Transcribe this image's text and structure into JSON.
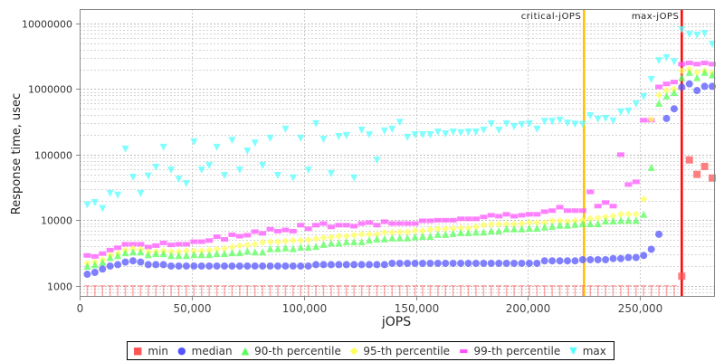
{
  "chart_data": {
    "type": "scatter",
    "xlabel": "jOPS",
    "ylabel": "Response time, usec",
    "xlim": [
      0,
      283000
    ],
    "ylim": [
      700,
      16600000
    ],
    "yscale": "log",
    "grid": true,
    "legend_position": "bottom",
    "x_ticks": [
      "0",
      "50,000",
      "100,000",
      "150,000",
      "200,000",
      "250,000"
    ],
    "x_tick_values": [
      0,
      50000,
      100000,
      150000,
      200000,
      250000
    ],
    "y_ticks": [
      "1000",
      "10000",
      "100000",
      "1000000",
      "10000000"
    ],
    "y_tick_values": [
      1000,
      10000,
      100000,
      1000000,
      10000000
    ],
    "markers": [
      {
        "label": "critical-jOPS",
        "x": 225000,
        "color": "#FFC000"
      },
      {
        "label": "max-jOPS",
        "x": 268600,
        "color": "#FF0000"
      }
    ],
    "x": [
      3400,
      6800,
      10200,
      13600,
      17000,
      20400,
      23800,
      27200,
      30600,
      34000,
      37400,
      40800,
      44200,
      47600,
      51000,
      54400,
      57800,
      61200,
      64600,
      68000,
      71400,
      74800,
      78200,
      81600,
      85000,
      88400,
      91800,
      95200,
      98600,
      102000,
      105400,
      108800,
      112200,
      115600,
      119000,
      122400,
      125800,
      129200,
      132600,
      136000,
      139400,
      142800,
      146200,
      149600,
      153000,
      156400,
      159800,
      163200,
      166600,
      170000,
      173400,
      176800,
      180200,
      183600,
      187000,
      190400,
      193800,
      197200,
      200600,
      204000,
      207400,
      210800,
      214200,
      217600,
      221000,
      224400,
      227800,
      231200,
      234600,
      238000,
      241400,
      244800,
      248200,
      251600,
      255000,
      258400,
      261800,
      265200,
      268600,
      272000,
      275400,
      278800,
      282200
    ],
    "series": [
      {
        "name": "min",
        "color": "#FF5555",
        "marker": "square",
        "values": [
          1000,
          1000,
          1000,
          1000,
          1000,
          1000,
          1000,
          1000,
          1000,
          1000,
          1000,
          1000,
          1000,
          1000,
          1000,
          1000,
          1000,
          1000,
          1000,
          1000,
          1000,
          1000,
          1000,
          1000,
          1000,
          1000,
          1000,
          1000,
          1000,
          1000,
          1000,
          1000,
          1000,
          1000,
          1000,
          1000,
          1000,
          1000,
          1000,
          1000,
          1000,
          1000,
          1000,
          1000,
          1000,
          1000,
          1000,
          1000,
          1000,
          1000,
          1000,
          1000,
          1000,
          1000,
          1000,
          1000,
          1000,
          1000,
          1000,
          1000,
          1000,
          1000,
          1000,
          1000,
          1000,
          1000,
          1000,
          1000,
          1000,
          1000,
          1000,
          1000,
          1000,
          1000,
          1000,
          1000,
          1000,
          1000,
          1400,
          83000,
          50000,
          66000,
          44000
        ]
      },
      {
        "name": "median",
        "color": "#5555FF",
        "marker": "circle",
        "values": [
          1500,
          1600,
          1800,
          2000,
          2100,
          2300,
          2400,
          2300,
          2100,
          2100,
          2100,
          2000,
          2000,
          2000,
          2000,
          2000,
          2000,
          2000,
          2000,
          2000,
          2000,
          2000,
          2000,
          2000,
          2000,
          2000,
          2000,
          2000,
          2000,
          2000,
          2100,
          2100,
          2100,
          2100,
          2100,
          2100,
          2100,
          2100,
          2100,
          2100,
          2200,
          2200,
          2200,
          2200,
          2200,
          2200,
          2200,
          2200,
          2200,
          2200,
          2200,
          2200,
          2200,
          2200,
          2200,
          2200,
          2200,
          2200,
          2200,
          2200,
          2400,
          2400,
          2400,
          2400,
          2400,
          2500,
          2500,
          2500,
          2500,
          2600,
          2600,
          2700,
          2700,
          2900,
          3600,
          6100,
          356000,
          500000,
          1070000,
          1200000,
          950000,
          1100000,
          1100000
        ]
      },
      {
        "name": "90-th percentile",
        "color": "#55FF55",
        "marker": "triangle-up",
        "values": [
          2000,
          2100,
          2300,
          2700,
          2900,
          3200,
          3300,
          3300,
          3000,
          3100,
          3100,
          2900,
          2900,
          2900,
          3000,
          3000,
          3000,
          3100,
          3100,
          3200,
          3200,
          3400,
          3300,
          3300,
          3700,
          3700,
          3800,
          3700,
          3900,
          3900,
          4000,
          4300,
          4500,
          4500,
          4700,
          4700,
          4700,
          5000,
          5200,
          5200,
          5400,
          5400,
          5400,
          5600,
          5700,
          5700,
          6100,
          6100,
          6300,
          6500,
          6500,
          6600,
          6600,
          6900,
          6900,
          7400,
          7400,
          7400,
          7600,
          7600,
          7900,
          8100,
          8400,
          8400,
          8700,
          8900,
          8900,
          8900,
          9800,
          9800,
          10000,
          10000,
          10000,
          12300,
          64000,
          610000,
          790000,
          890000,
          1500000,
          1800000,
          1500000,
          1800000,
          1650000
        ]
      },
      {
        "name": "95-th percentile",
        "color": "#FFFF55",
        "marker": "diamond",
        "values": [
          2200,
          2300,
          2500,
          2900,
          3100,
          3500,
          3700,
          3600,
          3300,
          3300,
          3400,
          3300,
          3300,
          3400,
          3400,
          3400,
          3500,
          3600,
          3700,
          3900,
          4100,
          4200,
          4300,
          4600,
          4700,
          4700,
          4800,
          4900,
          4900,
          5000,
          5200,
          5400,
          5500,
          5700,
          5700,
          5900,
          6100,
          6100,
          6100,
          6500,
          6500,
          6600,
          6600,
          6900,
          6900,
          7200,
          7400,
          7400,
          7500,
          7600,
          7600,
          7900,
          8400,
          8700,
          8700,
          8700,
          8700,
          8900,
          9200,
          9200,
          9200,
          9800,
          9800,
          9500,
          9800,
          10000,
          10500,
          10800,
          11200,
          11500,
          12300,
          12300,
          12300,
          21000,
          345000,
          810000,
          950000,
          1000000,
          1900000,
          2000000,
          1800000,
          1900000,
          1750000
        ]
      },
      {
        "name": "99-th percentile",
        "color": "#FF55FF",
        "marker": "rect",
        "values": [
          2900,
          2800,
          3100,
          3500,
          3800,
          4300,
          4300,
          4300,
          3900,
          4100,
          4500,
          4200,
          4300,
          4300,
          4700,
          4700,
          4900,
          5600,
          5100,
          6000,
          5700,
          5900,
          6700,
          6300,
          7300,
          6800,
          7100,
          6800,
          8400,
          7400,
          8400,
          8900,
          7900,
          8400,
          8400,
          8100,
          8900,
          9200,
          8400,
          9500,
          8900,
          8900,
          8900,
          8900,
          9800,
          9800,
          10000,
          10000,
          10000,
          10500,
          10500,
          10500,
          11200,
          11900,
          11500,
          12300,
          11500,
          11900,
          12300,
          12300,
          13500,
          14000,
          15800,
          14000,
          14000,
          14000,
          27000,
          16400,
          18600,
          16400,
          100000,
          35000,
          38500,
          335000,
          335000,
          1080000,
          1200000,
          1280000,
          2400000,
          2500000,
          2400000,
          2500000,
          2400000
        ]
      },
      {
        "name": "max",
        "color": "#55FFFF",
        "marker": "triangle-down",
        "values": [
          17000,
          18500,
          15000,
          25500,
          24000,
          121000,
          45000,
          25500,
          47000,
          64000,
          129000,
          58000,
          42000,
          36000,
          156000,
          58000,
          68000,
          129000,
          48000,
          165000,
          58000,
          113000,
          150000,
          68000,
          177000,
          48000,
          243000,
          44000,
          177000,
          58000,
          295000,
          170000,
          51000,
          188000,
          195000,
          44000,
          235000,
          200000,
          82000,
          228000,
          243000,
          310000,
          183000,
          200000,
          200000,
          200000,
          220000,
          207000,
          220000,
          215000,
          220000,
          220000,
          235000,
          295000,
          235000,
          295000,
          268000,
          285000,
          295000,
          243000,
          320000,
          320000,
          335000,
          300000,
          290000,
          290000,
          390000,
          345000,
          355000,
          325000,
          445000,
          460000,
          590000,
          760000,
          1400000,
          2700000,
          3000000,
          2600000,
          8000000,
          6800000,
          6600000,
          7000000,
          4800000
        ]
      }
    ]
  }
}
